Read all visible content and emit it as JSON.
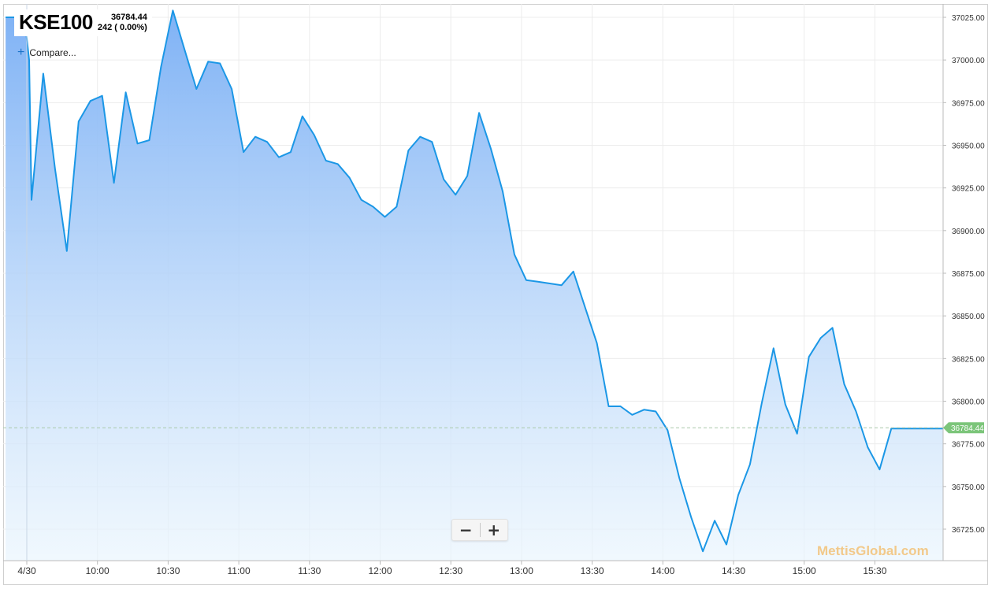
{
  "symbol": "KSE100",
  "last_price": "36784.44",
  "change_text": "242 ( 0.00%)",
  "compare_label": "Compare...",
  "zoom_out_label": "−",
  "zoom_in_label": "+",
  "watermark": "MettisGlobal.com",
  "price_tag": "36784.44",
  "colors": {
    "line": "#1b97e6",
    "area_top": "#7fb2f5",
    "area_bottom": "#eaf5fd",
    "price_tag": "#7cc57a",
    "grid": "#ececec"
  },
  "chart_data": {
    "type": "area",
    "title": "",
    "xlabel": "",
    "ylabel": "",
    "ylim": [
      36710,
      37030
    ],
    "y_ticks": [
      "37025.00",
      "37000.00",
      "36975.00",
      "36950.00",
      "36925.00",
      "36900.00",
      "36875.00",
      "36850.00",
      "36825.00",
      "36800.00",
      "36775.00",
      "36750.00",
      "36725.00"
    ],
    "x_ticks": [
      {
        "label": "4/30",
        "t": 0
      },
      {
        "label": "10:00",
        "t": 30
      },
      {
        "label": "10:30",
        "t": 60
      },
      {
        "label": "11:00",
        "t": 90
      },
      {
        "label": "11:30",
        "t": 120
      },
      {
        "label": "12:00",
        "t": 150
      },
      {
        "label": "12:30",
        "t": 180
      },
      {
        "label": "13:00",
        "t": 210
      },
      {
        "label": "13:30",
        "t": 240
      },
      {
        "label": "14:00",
        "t": 270
      },
      {
        "label": "14:30",
        "t": 300
      },
      {
        "label": "15:00",
        "t": 330
      },
      {
        "label": "15:30",
        "t": 360
      }
    ],
    "grid": true,
    "reference_line": 36784.44,
    "series": [
      {
        "points": [
          [
            -9,
            37025
          ],
          [
            -1,
            37025
          ],
          [
            1,
            37000
          ],
          [
            2,
            36918
          ],
          [
            7,
            36992
          ],
          [
            12,
            36936
          ],
          [
            17,
            36888
          ],
          [
            22,
            36964
          ],
          [
            27,
            36976
          ],
          [
            32,
            36979
          ],
          [
            37,
            36928
          ],
          [
            42,
            36981
          ],
          [
            47,
            36951
          ],
          [
            52,
            36953
          ],
          [
            57,
            36996
          ],
          [
            62,
            37029
          ],
          [
            67,
            37006
          ],
          [
            72,
            36983
          ],
          [
            77,
            36999
          ],
          [
            82,
            36998
          ],
          [
            87,
            36983
          ],
          [
            92,
            36946
          ],
          [
            97,
            36955
          ],
          [
            102,
            36952
          ],
          [
            107,
            36943
          ],
          [
            112,
            36946
          ],
          [
            117,
            36967
          ],
          [
            122,
            36956
          ],
          [
            127,
            36941
          ],
          [
            132,
            36939
          ],
          [
            137,
            36931
          ],
          [
            142,
            36918
          ],
          [
            147,
            36914
          ],
          [
            152,
            36908
          ],
          [
            157,
            36914
          ],
          [
            162,
            36947
          ],
          [
            167,
            36955
          ],
          [
            172,
            36952
          ],
          [
            177,
            36930
          ],
          [
            182,
            36921
          ],
          [
            187,
            36932
          ],
          [
            192,
            36969
          ],
          [
            197,
            36948
          ],
          [
            202,
            36923
          ],
          [
            207,
            36886
          ],
          [
            212,
            36871
          ],
          [
            217,
            36870
          ],
          [
            222,
            36869
          ],
          [
            227,
            36868
          ],
          [
            232,
            36876
          ],
          [
            237,
            36855
          ],
          [
            242,
            36834
          ],
          [
            247,
            36797
          ],
          [
            252,
            36797
          ],
          [
            257,
            36792
          ],
          [
            262,
            36795
          ],
          [
            267,
            36794
          ],
          [
            272,
            36783
          ],
          [
            277,
            36755
          ],
          [
            282,
            36732
          ],
          [
            287,
            36712
          ],
          [
            292,
            36730
          ],
          [
            297,
            36716
          ],
          [
            302,
            36745
          ],
          [
            307,
            36763
          ],
          [
            312,
            36799
          ],
          [
            317,
            36831
          ],
          [
            322,
            36798
          ],
          [
            327,
            36781
          ],
          [
            332,
            36826
          ],
          [
            337,
            36837
          ],
          [
            342,
            36843
          ],
          [
            347,
            36810
          ],
          [
            352,
            36794
          ],
          [
            357,
            36773
          ],
          [
            362,
            36760
          ],
          [
            367,
            36784
          ],
          [
            372,
            36784
          ],
          [
            377,
            36784
          ],
          [
            382,
            36784
          ],
          [
            387,
            36784
          ],
          [
            392,
            36784
          ]
        ]
      }
    ]
  }
}
